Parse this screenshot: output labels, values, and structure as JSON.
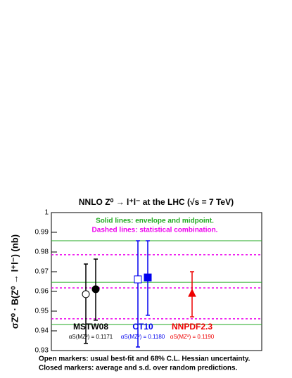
{
  "chart_data": {
    "type": "errorbar",
    "title": "NNLO Z⁰ → l⁺l⁻ at the LHC (√s = 7 TeV)",
    "ylabel": "σZ⁰ · B(Z⁰ → l⁺l⁻) (nb)",
    "ylim": [
      0.93,
      1
    ],
    "yticks": [
      0.93,
      0.94,
      0.95,
      0.96,
      0.97,
      0.98,
      0.99,
      1
    ],
    "annotations": [
      {
        "text": "Solid lines: envelope and midpoint.",
        "color": "#22aa22"
      },
      {
        "text": "Dashed lines: statistical combination.",
        "color": "#ee00ee"
      }
    ],
    "notes": [
      "Open markers: usual best-fit and 68% C.L. Hessian uncertainty.",
      "Closed markers: average and s.d. over random predictions."
    ],
    "lines": [
      {
        "value": 0.9857,
        "style": "solid",
        "color": "#22aa22"
      },
      {
        "value": 0.9646,
        "style": "solid",
        "color": "#22aa22"
      },
      {
        "value": 0.9432,
        "style": "solid",
        "color": "#22aa22"
      },
      {
        "value": 0.9786,
        "style": "dashed",
        "color": "#ee00ee"
      },
      {
        "value": 0.9618,
        "style": "dashed",
        "color": "#ee00ee"
      },
      {
        "value": 0.9461,
        "style": "dashed",
        "color": "#ee00ee"
      }
    ],
    "series": [
      {
        "name": "MSTW08",
        "color": "#000000",
        "marker": "circle",
        "alpha_label": "αS(MZ²) = 0.1171",
        "points": [
          {
            "fill": "open",
            "value": 0.9586,
            "low": 0.9336,
            "high": 0.9739
          },
          {
            "fill": "closed",
            "value": 0.9611,
            "low": 0.9454,
            "high": 0.9764
          }
        ]
      },
      {
        "name": "CT10",
        "color": "#0000ee",
        "marker": "square",
        "alpha_label": "αS(MZ²) = 0.1180",
        "points": [
          {
            "fill": "open",
            "value": 0.9661,
            "low": 0.9318,
            "high": 0.9857
          },
          {
            "fill": "closed",
            "value": 0.9671,
            "low": 0.9479,
            "high": 0.9857
          }
        ]
      },
      {
        "name": "NNPDF2.3",
        "color": "#ee0000",
        "marker": "triangle",
        "alpha_label": "αS(MZ²) = 0.1190",
        "points": [
          {
            "fill": "closed",
            "value": 0.9589,
            "low": 0.9471,
            "high": 0.97
          }
        ]
      }
    ]
  }
}
